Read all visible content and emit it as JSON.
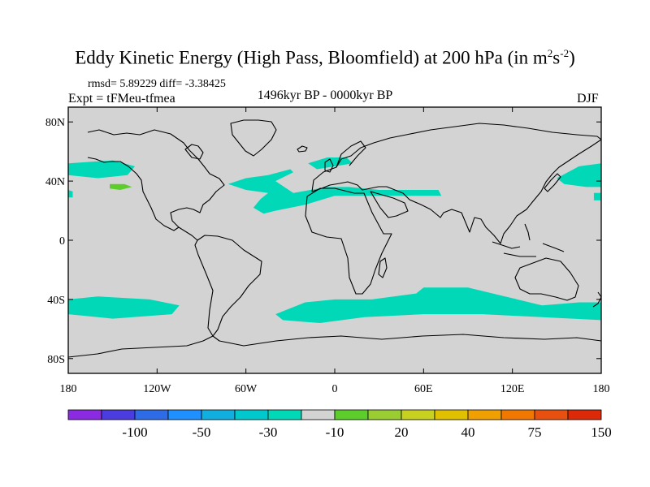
{
  "header": {
    "title_main": "Eddy Kinetic Energy (High Pass, Bloomfield) at 200 hPa (in m",
    "title_sup1": "2",
    "title_s": "s",
    "title_sup2": "-2",
    "title_close": ")",
    "stats": "rmsd= 5.89229 diff= -3.38425",
    "experiment": "Expt = tFMeu-tfmea",
    "period": "1496kyr BP - 0000kyr BP",
    "season": "DJF"
  },
  "map": {
    "lat_ticks": [
      {
        "label": "80N",
        "lat": 80
      },
      {
        "label": "40N",
        "lat": 40
      },
      {
        "label": "0",
        "lat": 0
      },
      {
        "label": "40S",
        "lat": -40
      },
      {
        "label": "80S",
        "lat": -80
      }
    ],
    "lon_ticks": [
      {
        "label": "180",
        "lon": -180
      },
      {
        "label": "120W",
        "lon": -120
      },
      {
        "label": "60W",
        "lon": -60
      },
      {
        "label": "0",
        "lon": 0
      },
      {
        "label": "60E",
        "lon": 60
      },
      {
        "label": "120E",
        "lon": 120
      },
      {
        "label": "180",
        "lon": 180
      }
    ],
    "background_color": "#d3d3d3",
    "anomaly_regions": [
      {
        "name": "north-pacific-east",
        "color": "#00d8b8",
        "coords": [
          [
            -180,
            52
          ],
          [
            -150,
            54
          ],
          [
            -135,
            50
          ],
          [
            -140,
            44
          ],
          [
            -160,
            42
          ],
          [
            -180,
            44
          ]
        ]
      },
      {
        "name": "north-pacific-west-edge",
        "color": "#00d8b8",
        "coords": [
          [
            -180,
            34
          ],
          [
            -177,
            33
          ],
          [
            -177,
            29
          ],
          [
            -180,
            29
          ]
        ]
      },
      {
        "name": "pacific-positive-spot",
        "color": "#5ccd2a",
        "coords": [
          [
            -152,
            38
          ],
          [
            -142,
            38
          ],
          [
            -137,
            36
          ],
          [
            -145,
            34
          ],
          [
            -152,
            35
          ]
        ]
      },
      {
        "name": "north-atlantic",
        "color": "#00d8b8",
        "coords": [
          [
            -72,
            38
          ],
          [
            -60,
            42
          ],
          [
            -45,
            44
          ],
          [
            -30,
            48
          ],
          [
            -28,
            46
          ],
          [
            -40,
            40
          ],
          [
            -28,
            32
          ],
          [
            -5,
            36
          ],
          [
            10,
            36
          ],
          [
            30,
            34
          ],
          [
            50,
            34
          ],
          [
            70,
            34
          ],
          [
            72,
            30
          ],
          [
            50,
            30
          ],
          [
            20,
            30
          ],
          [
            0,
            30
          ],
          [
            -20,
            24
          ],
          [
            -40,
            20
          ],
          [
            -48,
            18
          ],
          [
            -55,
            22
          ],
          [
            -50,
            28
          ],
          [
            -45,
            32
          ],
          [
            -60,
            34
          ]
        ]
      },
      {
        "name": "north-atlantic-northeast",
        "color": "#00d8b8",
        "coords": [
          [
            -18,
            52
          ],
          [
            -5,
            56
          ],
          [
            8,
            56
          ],
          [
            12,
            52
          ],
          [
            0,
            50
          ],
          [
            -12,
            48
          ]
        ]
      },
      {
        "name": "north-pacific-west",
        "color": "#00d8b8",
        "coords": [
          [
            150,
            42
          ],
          [
            165,
            50
          ],
          [
            180,
            52
          ],
          [
            180,
            36
          ],
          [
            170,
            36
          ],
          [
            155,
            38
          ]
        ]
      },
      {
        "name": "north-pacific-dateline",
        "color": "#00d8b8",
        "coords": [
          [
            175,
            32
          ],
          [
            180,
            32
          ],
          [
            180,
            27
          ],
          [
            175,
            27
          ]
        ]
      },
      {
        "name": "southern-ocean-west",
        "color": "#00d8b8",
        "coords": [
          [
            -180,
            -40
          ],
          [
            -160,
            -38
          ],
          [
            -125,
            -40
          ],
          [
            -105,
            -44
          ],
          [
            -110,
            -50
          ],
          [
            -150,
            -53
          ],
          [
            -180,
            -50
          ]
        ]
      },
      {
        "name": "southern-ocean-east",
        "color": "#00d8b8",
        "coords": [
          [
            -40,
            -50
          ],
          [
            -20,
            -42
          ],
          [
            0,
            -40
          ],
          [
            25,
            -40
          ],
          [
            55,
            -36
          ],
          [
            60,
            -32
          ],
          [
            90,
            -32
          ],
          [
            115,
            -38
          ],
          [
            140,
            -44
          ],
          [
            165,
            -42
          ],
          [
            180,
            -42
          ],
          [
            180,
            -54
          ],
          [
            140,
            -52
          ],
          [
            100,
            -50
          ],
          [
            60,
            -50
          ],
          [
            20,
            -52
          ],
          [
            -10,
            -56
          ],
          [
            -35,
            -54
          ]
        ]
      }
    ]
  },
  "legend": {
    "colors": [
      "#8a2be2",
      "#4b3ce0",
      "#2e6be6",
      "#1e90ff",
      "#11aee0",
      "#00c8cc",
      "#00d8b8",
      "#d3d3d3",
      "#5ccd2a",
      "#9acd32",
      "#c8d020",
      "#e0c000",
      "#f0a000",
      "#f07800",
      "#e85010",
      "#dc2a08"
    ],
    "labels": [
      {
        "text": "-100",
        "boundary": 2
      },
      {
        "text": "-50",
        "boundary": 4
      },
      {
        "text": "-30",
        "boundary": 6
      },
      {
        "text": "-10",
        "boundary": 8
      },
      {
        "text": "20",
        "boundary": 10
      },
      {
        "text": "40",
        "boundary": 12
      },
      {
        "text": "75",
        "boundary": 14
      },
      {
        "text": "150",
        "boundary": 16
      }
    ]
  }
}
